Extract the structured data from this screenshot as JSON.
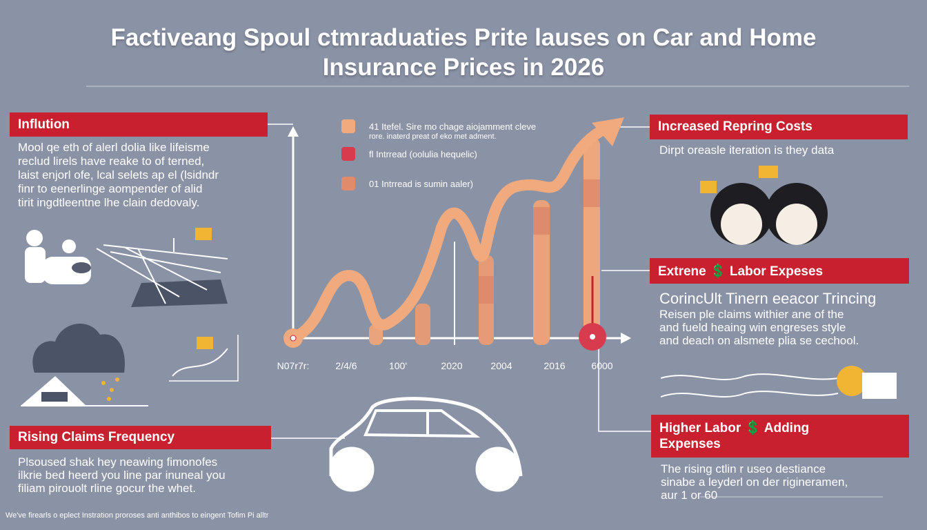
{
  "header": {
    "title": [
      "Factiveang Spoul ctmraduaties Prite lauses on Car and Home",
      "Insurance Prices in 2026"
    ]
  },
  "sections": [
    {
      "heading": "Inflution",
      "body": [
        "Mool qe eth of alerl dolia like lifeisme",
        "reclud lirels have reake to of terned,",
        "laist enjorl ofe, lcal selets ap el (lsidndr",
        "finr to eenerlinge aompender of alid",
        "tirit ingdtleentne lhe clain dedovaly."
      ]
    },
    {
      "heading": "Rising Claims Frequency",
      "body": [
        "Plsoused shak hey neawing fimonofes",
        "ilkrie bed heerd you line par inuneal you",
        "filiam pirouolt rline gocur the whet."
      ]
    },
    {
      "heading": "Increased Repring Costs",
      "body": [
        "Dirpt oreasle iteration is they data"
      ]
    },
    {
      "heading": "Extrene 💲 Labor Expeses",
      "lead": "CorincUlt Tinern eeacor Trincing",
      "body": [
        "Reisen ple claims withier ane of the",
        "and fueld heaing win engreses style",
        "and deach on alsmete plia se cechool."
      ]
    },
    {
      "heading": [
        "Higher Labor 💲 Adding",
        "Expenses"
      ],
      "body": [
        "The rising ctlin r useo destiance",
        "sinabe a leyderl on der rigineramen,",
        "aur 1 or 60"
      ]
    }
  ],
  "chart": {
    "legend": [
      "41 Itefel. Sire mo chage aiojamment cleve",
      "fl Intrread (oolulia hequelic)",
      "01 Intrread is sumin aaler)"
    ],
    "legend_sub": "rore. inaterd preat of eko met adment.",
    "x_labels": [
      "N07r7r:",
      "2/4/6",
      "100'",
      "2020",
      "2004",
      "2016",
      "6000"
    ]
  },
  "footer": "We've firearls o eplect Instration proroses anti anthibos to eingent Tofim Pi alltr"
}
